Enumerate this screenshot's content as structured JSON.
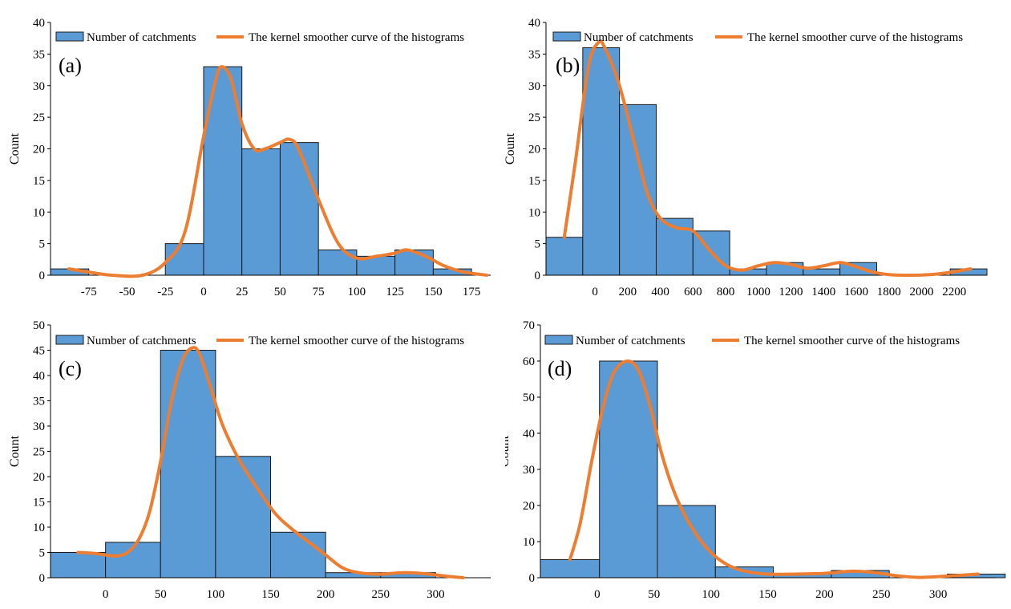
{
  "legend": {
    "bars_label": "Number of catchments",
    "curve_label": "The kernel smoother curve of the histograms"
  },
  "colors": {
    "bar": "#5b9bd5",
    "bar_edge": "#1a1a1a",
    "curve": "#ed7d31"
  },
  "chart_data": [
    {
      "type": "bar",
      "panel_label": "(a)",
      "ylabel": "Count",
      "ylim": [
        0,
        40
      ],
      "yticks": [
        0,
        5,
        10,
        15,
        20,
        25,
        30,
        35,
        40
      ],
      "xlim": [
        -100,
        187.5
      ],
      "xticks": [
        -75,
        -50,
        -25,
        0,
        25,
        50,
        75,
        100,
        125,
        150,
        175
      ],
      "bins": [
        {
          "from": -100,
          "to": -75,
          "count": 1
        },
        {
          "from": -75,
          "to": -50,
          "count": 0
        },
        {
          "from": -50,
          "to": -25,
          "count": 0
        },
        {
          "from": -25,
          "to": 0,
          "count": 5
        },
        {
          "from": 0,
          "to": 25,
          "count": 33
        },
        {
          "from": 25,
          "to": 50,
          "count": 20
        },
        {
          "from": 50,
          "to": 75,
          "count": 21
        },
        {
          "from": 75,
          "to": 100,
          "count": 4
        },
        {
          "from": 100,
          "to": 125,
          "count": 3
        },
        {
          "from": 125,
          "to": 150,
          "count": 4
        },
        {
          "from": 150,
          "to": 175,
          "count": 1
        }
      ],
      "curve": [
        [
          -88,
          1
        ],
        [
          -75,
          0.5
        ],
        [
          -60,
          0
        ],
        [
          -40,
          0
        ],
        [
          -25,
          2
        ],
        [
          -12,
          7
        ],
        [
          0,
          22
        ],
        [
          8,
          31
        ],
        [
          12,
          33
        ],
        [
          18,
          31
        ],
        [
          25,
          24
        ],
        [
          33,
          20
        ],
        [
          40,
          20
        ],
        [
          50,
          21
        ],
        [
          56,
          21.5
        ],
        [
          62,
          20
        ],
        [
          75,
          12
        ],
        [
          88,
          5
        ],
        [
          100,
          2.7
        ],
        [
          113,
          3
        ],
        [
          125,
          3.5
        ],
        [
          133,
          4
        ],
        [
          145,
          3
        ],
        [
          157,
          1.5
        ],
        [
          170,
          0.5
        ],
        [
          185,
          0
        ]
      ]
    },
    {
      "type": "bar",
      "panel_label": "(b)",
      "ylabel": "Count",
      "ylim": [
        0,
        40
      ],
      "yticks": [
        0,
        5,
        10,
        15,
        20,
        25,
        30,
        35,
        40
      ],
      "xlim": [
        -300,
        2400
      ],
      "xticks": [
        0,
        200,
        400,
        600,
        800,
        1000,
        1200,
        1400,
        1600,
        1800,
        2000,
        2200
      ],
      "bins": [
        {
          "from": -300,
          "to": -75,
          "count": 6
        },
        {
          "from": -75,
          "to": 150,
          "count": 36
        },
        {
          "from": 150,
          "to": 375,
          "count": 27
        },
        {
          "from": 375,
          "to": 600,
          "count": 9
        },
        {
          "from": 600,
          "to": 825,
          "count": 7
        },
        {
          "from": 825,
          "to": 1050,
          "count": 1
        },
        {
          "from": 1050,
          "to": 1275,
          "count": 2
        },
        {
          "from": 1275,
          "to": 1500,
          "count": 1
        },
        {
          "from": 1500,
          "to": 1725,
          "count": 2
        },
        {
          "from": 1725,
          "to": 1950,
          "count": 0
        },
        {
          "from": 1950,
          "to": 2175,
          "count": 0
        },
        {
          "from": 2175,
          "to": 2400,
          "count": 1
        }
      ],
      "curve": [
        [
          -188,
          6
        ],
        [
          -120,
          18
        ],
        [
          -40,
          33
        ],
        [
          20,
          36.8
        ],
        [
          60,
          36
        ],
        [
          150,
          30
        ],
        [
          250,
          20
        ],
        [
          320,
          13
        ],
        [
          400,
          9
        ],
        [
          500,
          7.5
        ],
        [
          600,
          7
        ],
        [
          700,
          4
        ],
        [
          800,
          1.5
        ],
        [
          900,
          0.8
        ],
        [
          1000,
          1.5
        ],
        [
          1100,
          2
        ],
        [
          1200,
          1.7
        ],
        [
          1300,
          1.1
        ],
        [
          1400,
          1.5
        ],
        [
          1500,
          2
        ],
        [
          1580,
          1.5
        ],
        [
          1700,
          0.5
        ],
        [
          1800,
          0.1
        ],
        [
          1950,
          0
        ],
        [
          2100,
          0.2
        ],
        [
          2300,
          1
        ]
      ]
    },
    {
      "type": "bar",
      "panel_label": "(c)",
      "ylabel": "Count",
      "ylim": [
        0,
        50
      ],
      "yticks": [
        0,
        5,
        10,
        15,
        20,
        25,
        30,
        35,
        40,
        45,
        50
      ],
      "xlim": [
        -50,
        350
      ],
      "xticks": [
        0,
        50,
        100,
        150,
        200,
        250,
        300
      ],
      "bins": [
        {
          "from": -50,
          "to": 0,
          "count": 5
        },
        {
          "from": 0,
          "to": 50,
          "count": 7
        },
        {
          "from": 50,
          "to": 100,
          "count": 45
        },
        {
          "from": 100,
          "to": 150,
          "count": 24
        },
        {
          "from": 150,
          "to": 200,
          "count": 9
        },
        {
          "from": 200,
          "to": 250,
          "count": 1
        },
        {
          "from": 250,
          "to": 300,
          "count": 1
        },
        {
          "from": 300,
          "to": 350,
          "count": 0
        }
      ],
      "curve": [
        [
          -25,
          5
        ],
        [
          -10,
          4.8
        ],
        [
          0,
          4.5
        ],
        [
          10,
          4.3
        ],
        [
          20,
          5
        ],
        [
          30,
          7.5
        ],
        [
          40,
          13
        ],
        [
          50,
          23
        ],
        [
          60,
          35
        ],
        [
          70,
          43
        ],
        [
          78,
          45.4
        ],
        [
          85,
          44.5
        ],
        [
          95,
          38
        ],
        [
          105,
          31
        ],
        [
          115,
          26
        ],
        [
          125,
          22
        ],
        [
          140,
          17
        ],
        [
          155,
          12.5
        ],
        [
          170,
          9.5
        ],
        [
          185,
          7
        ],
        [
          200,
          4.5
        ],
        [
          215,
          2
        ],
        [
          230,
          1
        ],
        [
          250,
          0.7
        ],
        [
          270,
          1
        ],
        [
          290,
          0.8
        ],
        [
          310,
          0.3
        ],
        [
          325,
          0
        ]
      ]
    },
    {
      "type": "bar",
      "panel_label": "(d)",
      "ylabel": "Count",
      "ylim": [
        0,
        70
      ],
      "yticks": [
        0,
        10,
        20,
        30,
        40,
        50,
        60,
        70
      ],
      "xlim": [
        -50,
        350
      ],
      "xticks": [
        0,
        50,
        100,
        150,
        200,
        250,
        300
      ],
      "bins": [
        {
          "from": -50,
          "to": 2,
          "count": 5
        },
        {
          "from": 2,
          "to": 53,
          "count": 60
        },
        {
          "from": 53,
          "to": 104,
          "count": 20
        },
        {
          "from": 104,
          "to": 155,
          "count": 3
        },
        {
          "from": 155,
          "to": 206,
          "count": 1
        },
        {
          "from": 206,
          "to": 257,
          "count": 2
        },
        {
          "from": 257,
          "to": 308,
          "count": 0
        },
        {
          "from": 308,
          "to": 359,
          "count": 1
        }
      ],
      "curve": [
        [
          -24,
          5
        ],
        [
          -15,
          15
        ],
        [
          -5,
          32
        ],
        [
          5,
          47
        ],
        [
          15,
          57
        ],
        [
          27,
          60
        ],
        [
          37,
          57
        ],
        [
          47,
          47
        ],
        [
          57,
          34
        ],
        [
          70,
          22
        ],
        [
          85,
          13
        ],
        [
          100,
          7
        ],
        [
          115,
          3.5
        ],
        [
          130,
          1.8
        ],
        [
          150,
          1
        ],
        [
          175,
          1
        ],
        [
          200,
          1.2
        ],
        [
          225,
          1.8
        ],
        [
          245,
          1.4
        ],
        [
          265,
          0.5
        ],
        [
          285,
          0.1
        ],
        [
          310,
          0.5
        ],
        [
          335,
          1
        ]
      ]
    }
  ]
}
